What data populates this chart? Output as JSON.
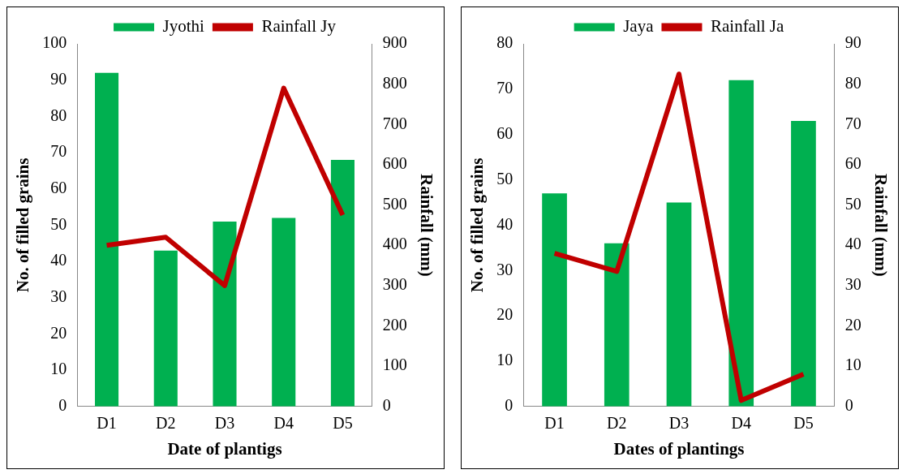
{
  "chart_data": [
    {
      "type": "bar",
      "categories": [
        "D1",
        "D2",
        "D3",
        "D4",
        "D5"
      ],
      "xlabel": "Date of plantigs",
      "ylabel": "No. of filled grains",
      "y2label": "Rainfall (mm)",
      "legend": "top",
      "grid": false,
      "series": [
        {
          "name": "Jyothi",
          "color": "#00b050",
          "values": [
            92,
            43,
            51,
            52,
            68
          ]
        },
        {
          "name": "Rainfall Jy",
          "type": "line",
          "axis": "y2",
          "color": "#c00000",
          "values": [
            400,
            420,
            300,
            790,
            475
          ]
        }
      ],
      "ylim": [
        0,
        100
      ],
      "yticks": [
        0,
        10,
        20,
        30,
        40,
        50,
        60,
        70,
        80,
        90,
        100
      ],
      "y2lim": [
        0,
        900
      ],
      "y2ticks": [
        0,
        100,
        200,
        300,
        400,
        500,
        600,
        700,
        800,
        900
      ]
    },
    {
      "type": "bar",
      "categories": [
        "D1",
        "D2",
        "D3",
        "D4",
        "D5"
      ],
      "xlabel": "Dates of plantings",
      "ylabel": "No. of filled grains",
      "y2label": "Rainfall (mm)",
      "legend": "top",
      "grid": false,
      "series": [
        {
          "name": "Jaya",
          "color": "#00b050",
          "values": [
            47,
            36,
            45,
            72,
            63
          ]
        },
        {
          "name": "Rainfall Ja",
          "type": "line",
          "axis": "y2",
          "color": "#c00000",
          "values": [
            38,
            33.5,
            82.5,
            1.5,
            8
          ]
        }
      ],
      "ylim": [
        0,
        80
      ],
      "yticks": [
        0,
        10,
        20,
        30,
        40,
        50,
        60,
        70,
        80
      ],
      "y2lim": [
        0,
        90
      ],
      "y2ticks": [
        0,
        10,
        20,
        30,
        40,
        50,
        60,
        70,
        80,
        90
      ]
    }
  ]
}
